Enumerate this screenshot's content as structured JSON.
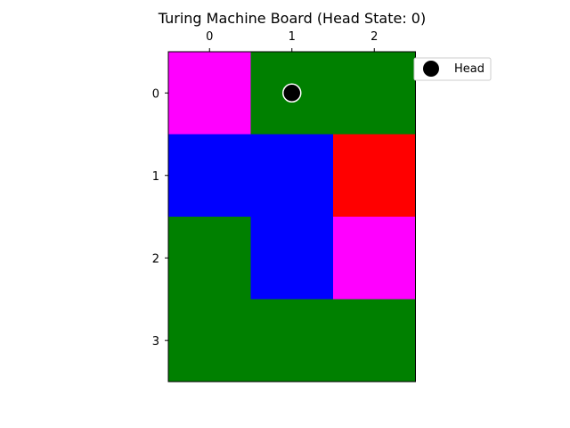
{
  "chart_data": {
    "type": "heatmap",
    "title": "Turing Machine Board (Head State: 0)",
    "x_ticks": [
      "0",
      "1",
      "2"
    ],
    "y_ticks": [
      "0",
      "1",
      "2",
      "3"
    ],
    "x_tick_position": "top",
    "rows": 4,
    "cols": 3,
    "grid": [
      [
        "magenta",
        "green",
        "green"
      ],
      [
        "blue",
        "blue",
        "red"
      ],
      [
        "green",
        "blue",
        "magenta"
      ],
      [
        "green",
        "green",
        "green"
      ]
    ],
    "colors": {
      "magenta": "#ff00ff",
      "green": "#008000",
      "blue": "#0000ff",
      "red": "#ff0000"
    },
    "head": {
      "row": 0,
      "col": 1,
      "state": 0,
      "color": "#000000"
    },
    "legend": {
      "label": "Head",
      "placement": "upper-right-outside"
    },
    "grid_lines": false
  }
}
